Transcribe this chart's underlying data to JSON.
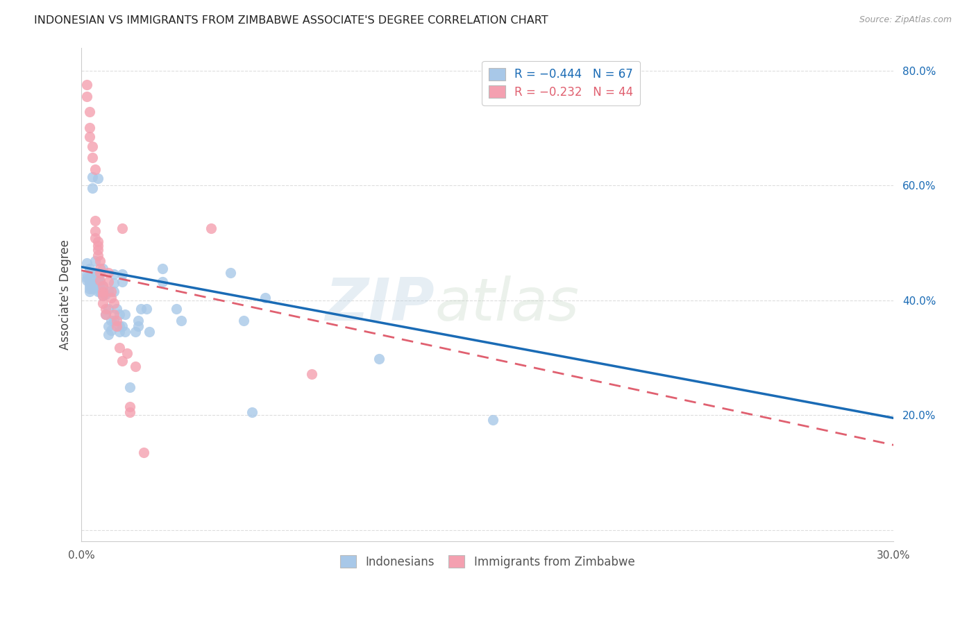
{
  "title": "INDONESIAN VS IMMIGRANTS FROM ZIMBABWE ASSOCIATE'S DEGREE CORRELATION CHART",
  "source": "Source: ZipAtlas.com",
  "ylabel": "Associate's Degree",
  "y_ticks": [
    0.0,
    0.2,
    0.4,
    0.6,
    0.8
  ],
  "y_tick_labels": [
    "",
    "20.0%",
    "40.0%",
    "60.0%",
    "80.0%"
  ],
  "x_range": [
    0.0,
    0.3
  ],
  "y_range": [
    -0.02,
    0.84
  ],
  "legend_blue_r": "R = −0.444",
  "legend_blue_n": "N = 67",
  "legend_pink_r": "R = −0.232",
  "legend_pink_n": "N = 44",
  "legend_label_blue": "Indonesians",
  "legend_label_pink": "Immigrants from Zimbabwe",
  "blue_color": "#a8c8e8",
  "pink_color": "#f4a0b0",
  "blue_line_color": "#1a6bb5",
  "pink_line_color": "#e06070",
  "blue_scatter": [
    [
      0.002,
      0.465
    ],
    [
      0.002,
      0.445
    ],
    [
      0.002,
      0.435
    ],
    [
      0.002,
      0.44
    ],
    [
      0.003,
      0.455
    ],
    [
      0.003,
      0.43
    ],
    [
      0.003,
      0.42
    ],
    [
      0.003,
      0.415
    ],
    [
      0.003,
      0.425
    ],
    [
      0.003,
      0.438
    ],
    [
      0.004,
      0.448
    ],
    [
      0.004,
      0.435
    ],
    [
      0.004,
      0.42
    ],
    [
      0.004,
      0.615
    ],
    [
      0.004,
      0.595
    ],
    [
      0.005,
      0.468
    ],
    [
      0.005,
      0.448
    ],
    [
      0.006,
      0.43
    ],
    [
      0.006,
      0.415
    ],
    [
      0.006,
      0.428
    ],
    [
      0.006,
      0.435
    ],
    [
      0.006,
      0.612
    ],
    [
      0.007,
      0.445
    ],
    [
      0.007,
      0.432
    ],
    [
      0.007,
      0.42
    ],
    [
      0.007,
      0.415
    ],
    [
      0.008,
      0.455
    ],
    [
      0.008,
      0.425
    ],
    [
      0.008,
      0.408
    ],
    [
      0.009,
      0.41
    ],
    [
      0.009,
      0.375
    ],
    [
      0.01,
      0.415
    ],
    [
      0.01,
      0.385
    ],
    [
      0.01,
      0.355
    ],
    [
      0.01,
      0.34
    ],
    [
      0.011,
      0.365
    ],
    [
      0.011,
      0.348
    ],
    [
      0.012,
      0.415
    ],
    [
      0.012,
      0.445
    ],
    [
      0.012,
      0.43
    ],
    [
      0.012,
      0.365
    ],
    [
      0.013,
      0.385
    ],
    [
      0.014,
      0.375
    ],
    [
      0.014,
      0.355
    ],
    [
      0.014,
      0.345
    ],
    [
      0.015,
      0.445
    ],
    [
      0.015,
      0.432
    ],
    [
      0.015,
      0.355
    ],
    [
      0.016,
      0.375
    ],
    [
      0.016,
      0.345
    ],
    [
      0.018,
      0.248
    ],
    [
      0.02,
      0.345
    ],
    [
      0.021,
      0.365
    ],
    [
      0.021,
      0.355
    ],
    [
      0.022,
      0.385
    ],
    [
      0.024,
      0.385
    ],
    [
      0.025,
      0.345
    ],
    [
      0.03,
      0.455
    ],
    [
      0.03,
      0.432
    ],
    [
      0.035,
      0.385
    ],
    [
      0.037,
      0.365
    ],
    [
      0.055,
      0.448
    ],
    [
      0.06,
      0.365
    ],
    [
      0.063,
      0.205
    ],
    [
      0.068,
      0.405
    ],
    [
      0.11,
      0.298
    ],
    [
      0.152,
      0.192
    ]
  ],
  "pink_scatter": [
    [
      0.002,
      0.775
    ],
    [
      0.002,
      0.755
    ],
    [
      0.003,
      0.728
    ],
    [
      0.003,
      0.7
    ],
    [
      0.003,
      0.685
    ],
    [
      0.004,
      0.668
    ],
    [
      0.004,
      0.648
    ],
    [
      0.005,
      0.628
    ],
    [
      0.005,
      0.538
    ],
    [
      0.005,
      0.52
    ],
    [
      0.005,
      0.508
    ],
    [
      0.006,
      0.502
    ],
    [
      0.006,
      0.495
    ],
    [
      0.006,
      0.488
    ],
    [
      0.006,
      0.478
    ],
    [
      0.007,
      0.468
    ],
    [
      0.007,
      0.455
    ],
    [
      0.007,
      0.448
    ],
    [
      0.007,
      0.435
    ],
    [
      0.008,
      0.425
    ],
    [
      0.008,
      0.415
    ],
    [
      0.008,
      0.412
    ],
    [
      0.008,
      0.408
    ],
    [
      0.008,
      0.395
    ],
    [
      0.009,
      0.385
    ],
    [
      0.009,
      0.375
    ],
    [
      0.01,
      0.448
    ],
    [
      0.01,
      0.432
    ],
    [
      0.011,
      0.415
    ],
    [
      0.011,
      0.405
    ],
    [
      0.012,
      0.395
    ],
    [
      0.012,
      0.375
    ],
    [
      0.013,
      0.365
    ],
    [
      0.013,
      0.355
    ],
    [
      0.014,
      0.318
    ],
    [
      0.015,
      0.295
    ],
    [
      0.015,
      0.525
    ],
    [
      0.017,
      0.308
    ],
    [
      0.018,
      0.205
    ],
    [
      0.018,
      0.215
    ],
    [
      0.02,
      0.285
    ],
    [
      0.023,
      0.135
    ],
    [
      0.048,
      0.525
    ],
    [
      0.085,
      0.272
    ]
  ],
  "blue_line_x": [
    0.0,
    0.3
  ],
  "blue_line_y": [
    0.458,
    0.195
  ],
  "pink_line_x": [
    0.0,
    0.3
  ],
  "pink_line_y": [
    0.452,
    0.148
  ],
  "watermark_zip": "ZIP",
  "watermark_atlas": "atlas",
  "background_color": "#ffffff",
  "grid_color": "#dddddd"
}
